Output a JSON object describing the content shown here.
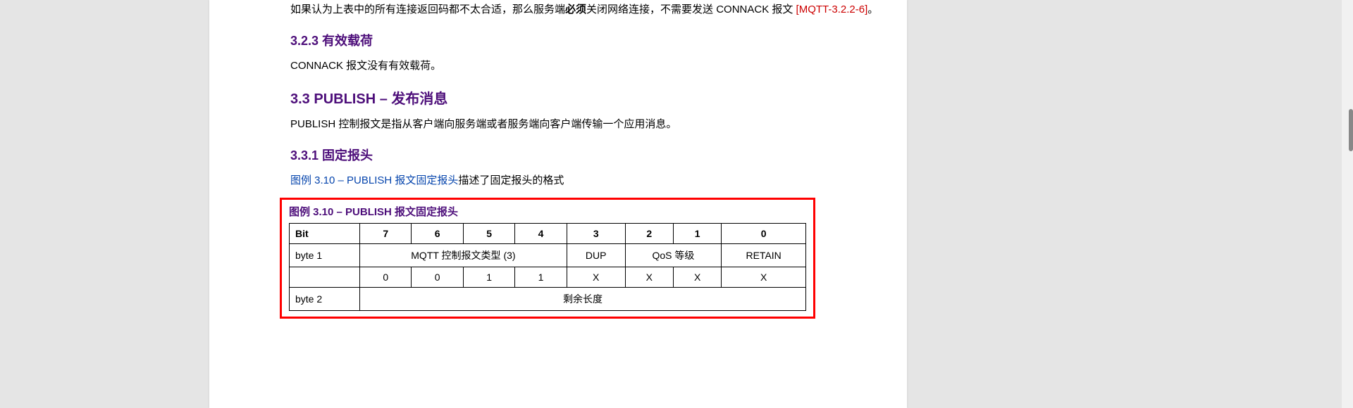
{
  "intro": {
    "text1": "如果认为上表中的所有连接返回码都不太合适，那么服务端",
    "bold": "必须",
    "text2": "关闭网络连接，不需要发送 CONNACK 报文 ",
    "ref": "[MQTT-3.2.2-6]",
    "text3": "。"
  },
  "sec323": {
    "title": "3.2.3 有效载荷",
    "body": "CONNACK 报文没有有效载荷。"
  },
  "sec33": {
    "title": "3.3 PUBLISH – 发布消息",
    "body": "PUBLISH 控制报文是指从客户端向服务端或者服务端向客户端传输一个应用消息。"
  },
  "sec331": {
    "title": "3.3.1 固定报头",
    "link": "图例 3.10 – PUBLISH 报文固定报头",
    "tail": "描述了固定报头的格式"
  },
  "figure": {
    "caption": "图例 3.10 – PUBLISH 报文固定报头",
    "header": {
      "bit": "Bit",
      "b7": "7",
      "b6": "6",
      "b5": "5",
      "b4": "4",
      "b3": "3",
      "b2": "2",
      "b1": "1",
      "b0": "0"
    },
    "row1": {
      "label": "byte 1",
      "c1": "MQTT 控制报文类型 (3)",
      "c2": "DUP",
      "c3": "QoS 等级",
      "c4": "RETAIN"
    },
    "row2": {
      "label": "",
      "v7": "0",
      "v6": "0",
      "v5": "1",
      "v4": "1",
      "v3": "X",
      "v2": "X",
      "v1": "X",
      "v0": "X"
    },
    "row3": {
      "label": "byte 2",
      "c1": "剩余长度"
    }
  }
}
